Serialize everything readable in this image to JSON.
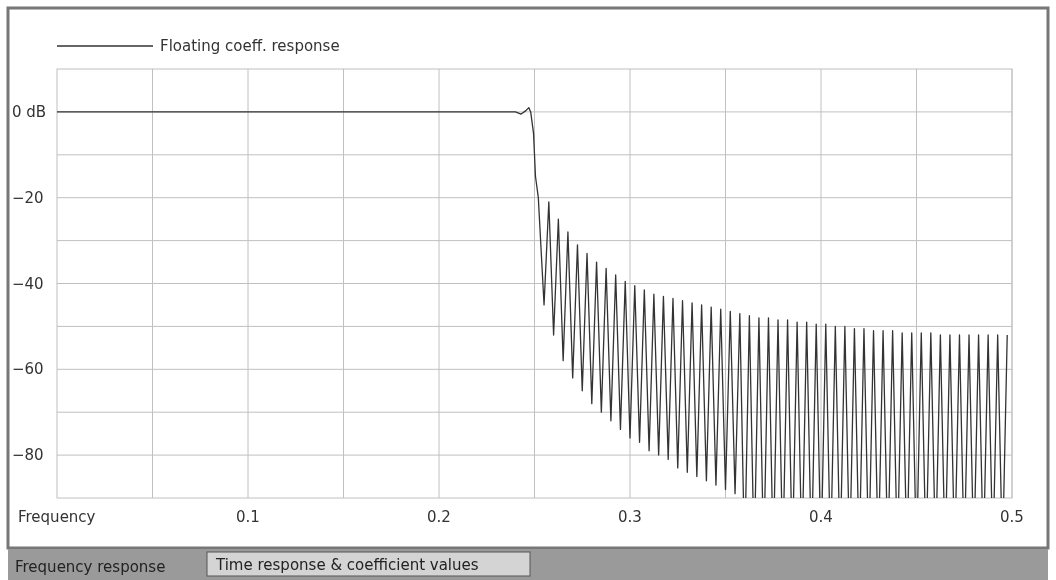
{
  "chart_data": {
    "type": "line",
    "xlabel": "Frequency",
    "xlim": [
      0,
      0.5
    ],
    "ylim": [
      -90,
      10
    ],
    "xticks": [
      {
        "value": 0.05,
        "label": null
      },
      0.1,
      {
        "value": 0.15,
        "label": null
      },
      0.2,
      {
        "value": 0.25,
        "label": null
      },
      0.3,
      {
        "value": 0.35,
        "label": null
      },
      0.4,
      {
        "value": 0.45,
        "label": null
      },
      0.5
    ],
    "yticks": [
      {
        "value": 0,
        "label": "0 dB"
      },
      {
        "value": -10,
        "label": null
      },
      {
        "value": -20,
        "label": "−20"
      },
      {
        "value": -30,
        "label": null
      },
      {
        "value": -40,
        "label": "−40"
      },
      {
        "value": -50,
        "label": null
      },
      {
        "value": -60,
        "label": "−60"
      },
      {
        "value": -70,
        "label": null
      },
      {
        "value": -80,
        "label": "−80"
      }
    ],
    "grid": true,
    "legend": "top left",
    "marker": "none",
    "line_style": "solid",
    "annotations": [
      "Frequency response",
      "Time response & coefficient values"
    ],
    "series": [
      {
        "name": "Floating coeff. response",
        "color": "#333333",
        "x": [
          0,
          0.05,
          0.1,
          0.15,
          0.2,
          0.24,
          0.243,
          0.2455,
          0.247,
          0.248,
          0.2495,
          0.2505,
          0.252,
          0.255,
          0.2575,
          0.26,
          0.2625,
          0.265,
          0.2675,
          0.27,
          0.2725,
          0.275,
          0.2775,
          0.28,
          0.2825,
          0.285,
          0.2875,
          0.29,
          0.2925,
          0.295,
          0.2975,
          0.3,
          0.3025,
          0.305,
          0.3075,
          0.31,
          0.3125,
          0.315,
          0.3175,
          0.32,
          0.3225,
          0.325,
          0.3275,
          0.33,
          0.3325,
          0.335,
          0.3375,
          0.34,
          0.3425,
          0.345,
          0.3475,
          0.35,
          0.3525,
          0.355,
          0.3575,
          0.36,
          0.3625,
          0.365,
          0.3675,
          0.37,
          0.3725,
          0.375,
          0.3775,
          0.38,
          0.3825,
          0.385,
          0.3875,
          0.39,
          0.3925,
          0.395,
          0.3975,
          0.4,
          0.4025,
          0.405,
          0.4075,
          0.41,
          0.4125,
          0.415,
          0.4175,
          0.42,
          0.4225,
          0.425,
          0.4275,
          0.43,
          0.4325,
          0.435,
          0.4375,
          0.44,
          0.4425,
          0.445,
          0.4475,
          0.45,
          0.4525,
          0.455,
          0.4575,
          0.46,
          0.4625,
          0.465,
          0.4675,
          0.47,
          0.4725,
          0.475,
          0.4775,
          0.48,
          0.4825,
          0.485,
          0.4875,
          0.49,
          0.4925,
          0.495,
          0.4975
        ],
        "values": [
          0,
          0,
          0,
          0,
          0,
          0,
          -0.5,
          0.3,
          1,
          0,
          -5,
          -15,
          -20,
          -45,
          -21,
          -52,
          -25,
          -58,
          -28,
          -62,
          -31,
          -65,
          -33,
          -68,
          -35,
          -70,
          -36.5,
          -72,
          -38,
          -74,
          -39.5,
          -76,
          -40.5,
          -77,
          -41.5,
          -79,
          -42.5,
          -80,
          -43,
          -81,
          -43.5,
          -83,
          -44,
          -84,
          -44.5,
          -85,
          -45,
          -86,
          -45.5,
          -87,
          -46,
          -88,
          -46.5,
          -89,
          -47,
          null,
          -47.5,
          null,
          -48,
          null,
          -48,
          null,
          -48.5,
          null,
          -48.5,
          null,
          -49,
          null,
          -49,
          null,
          -49.5,
          null,
          -49.5,
          null,
          -50,
          null,
          -50,
          null,
          -50.5,
          null,
          -50.5,
          null,
          -51,
          null,
          -51,
          null,
          -51,
          null,
          -51.5,
          null,
          -51.5,
          null,
          -51.5,
          null,
          -51.5,
          null,
          -52,
          null,
          -52,
          null,
          -52,
          null,
          -52,
          null,
          -52,
          null,
          -52,
          null,
          -52,
          null,
          -52
        ]
      }
    ]
  }
}
